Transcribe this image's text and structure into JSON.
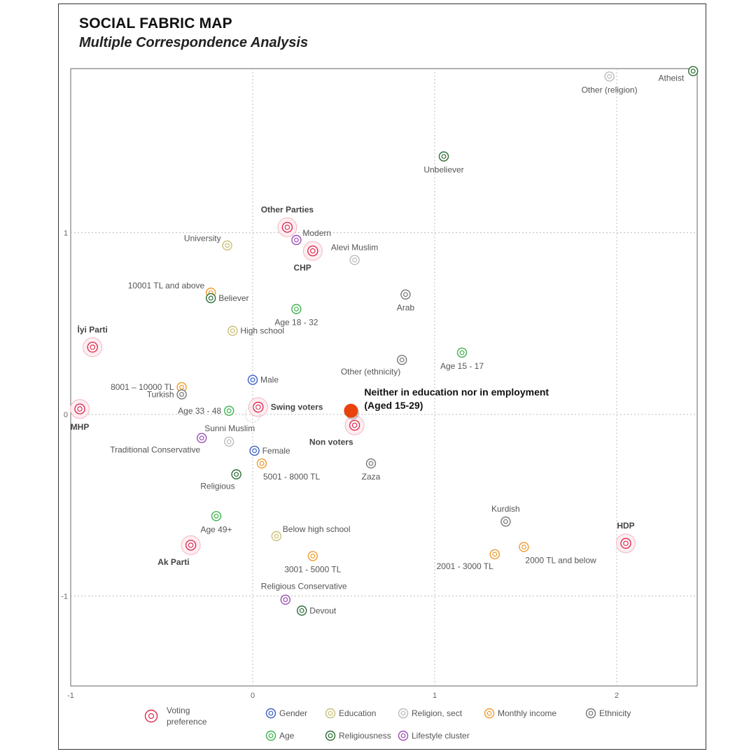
{
  "header": {
    "title": "SOCIAL FABRIC MAP",
    "subtitle": "Multiple Correspondence Analysis"
  },
  "chart_data": {
    "type": "scatter",
    "title": "SOCIAL FABRIC MAP",
    "subtitle": "Multiple Correspondence Analysis",
    "xlabel": "",
    "ylabel": "",
    "xlim": [
      -1,
      2.45
    ],
    "ylim": [
      -1.6,
      1.9
    ],
    "grid": true,
    "x_ticks": [
      {
        "value": -1,
        "label": "-1"
      },
      {
        "value": 0,
        "label": "0"
      },
      {
        "value": 1,
        "label": "1"
      },
      {
        "value": 2,
        "label": "2"
      }
    ],
    "y_ticks": [
      {
        "value": 1,
        "label": "1"
      },
      {
        "value": 0,
        "label": "0"
      },
      {
        "value": -1,
        "label": "-1"
      }
    ],
    "groups": [
      {
        "id": "voting",
        "name": "Voting preference",
        "color": "#e0294f"
      },
      {
        "id": "gender",
        "name": "Gender",
        "color": "#3d5fc4"
      },
      {
        "id": "education",
        "name": "Education",
        "color": "#c9c07a"
      },
      {
        "id": "religion",
        "name": "Religion, sect",
        "color": "#bbbbbb"
      },
      {
        "id": "income",
        "name": "Monthly income",
        "color": "#ef9a2e"
      },
      {
        "id": "ethnicity",
        "name": "Ethnicity",
        "color": "#777777"
      },
      {
        "id": "age",
        "name": "Age",
        "color": "#3fb24f"
      },
      {
        "id": "religiousness",
        "name": "Religiousness",
        "color": "#2e6b35"
      },
      {
        "id": "lifestyle",
        "name": "Lifestyle cluster",
        "color": "#9b4fb5"
      }
    ],
    "points": [
      {
        "label": "Atheist",
        "group": "religiousness",
        "x": 2.42,
        "y": 1.89,
        "lpos": "left-below"
      },
      {
        "label": "Other (religion)",
        "group": "religion",
        "x": 1.96,
        "y": 1.86,
        "lpos": "below"
      },
      {
        "label": "Unbeliever",
        "group": "religiousness",
        "x": 1.05,
        "y": 1.42,
        "lpos": "below"
      },
      {
        "label": "Other Parties",
        "group": "voting",
        "x": 0.19,
        "y": 1.03,
        "lpos": "above"
      },
      {
        "label": "Modern",
        "group": "lifestyle",
        "x": 0.24,
        "y": 0.96,
        "lpos": "right-above"
      },
      {
        "label": "CHP",
        "group": "voting",
        "x": 0.33,
        "y": 0.9,
        "lpos": "below-left"
      },
      {
        "label": "University",
        "group": "education",
        "x": -0.14,
        "y": 0.93,
        "lpos": "left-above"
      },
      {
        "label": "Alevi Muslim",
        "group": "religion",
        "x": 0.56,
        "y": 0.85,
        "lpos": "above"
      },
      {
        "label": "10001 TL and above",
        "group": "income",
        "x": -0.23,
        "y": 0.67,
        "lpos": "left-above"
      },
      {
        "label": "Believer",
        "group": "religiousness",
        "x": -0.23,
        "y": 0.64,
        "lpos": "right"
      },
      {
        "label": "Arab",
        "group": "ethnicity",
        "x": 0.84,
        "y": 0.66,
        "lpos": "below"
      },
      {
        "label": "Age 18 - 32",
        "group": "age",
        "x": 0.24,
        "y": 0.58,
        "lpos": "below"
      },
      {
        "label": "High school",
        "group": "education",
        "x": -0.11,
        "y": 0.46,
        "lpos": "right"
      },
      {
        "label": "İyi Parti",
        "group": "voting",
        "x": -0.88,
        "y": 0.37,
        "lpos": "above"
      },
      {
        "label": "Age 15 - 17",
        "group": "age",
        "x": 1.15,
        "y": 0.34,
        "lpos": "below"
      },
      {
        "label": "Other (ethnicity)",
        "group": "ethnicity",
        "x": 0.82,
        "y": 0.3,
        "lpos": "below-left"
      },
      {
        "label": "Male",
        "group": "gender",
        "x": 0.0,
        "y": 0.19,
        "lpos": "right"
      },
      {
        "label": "8001 – 10000 TL",
        "group": "income",
        "x": -0.39,
        "y": 0.15,
        "lpos": "left"
      },
      {
        "label": "Turkish",
        "group": "ethnicity",
        "x": -0.39,
        "y": 0.11,
        "lpos": "left"
      },
      {
        "label": "Swing voters",
        "group": "voting",
        "x": 0.03,
        "y": 0.04,
        "lpos": "right"
      },
      {
        "label": "MHP",
        "group": "voting",
        "x": -0.95,
        "y": 0.03,
        "lpos": "below"
      },
      {
        "label": "Age 33 - 48",
        "group": "age",
        "x": -0.13,
        "y": 0.02,
        "lpos": "left"
      },
      {
        "label": "Non voters",
        "group": "voting",
        "x": 0.56,
        "y": -0.06,
        "lpos": "below-left"
      },
      {
        "label": "Sunni Muslim",
        "group": "religion",
        "x": -0.13,
        "y": -0.15,
        "lpos": "above-right"
      },
      {
        "label": "Traditional Conservative",
        "group": "lifestyle",
        "x": -0.28,
        "y": -0.13,
        "lpos": "below-left"
      },
      {
        "label": "Female",
        "group": "gender",
        "x": 0.01,
        "y": -0.2,
        "lpos": "right"
      },
      {
        "label": "5001 - 8000 TL",
        "group": "income",
        "x": 0.05,
        "y": -0.27,
        "lpos": "below-right"
      },
      {
        "label": "Zaza",
        "group": "ethnicity",
        "x": 0.65,
        "y": -0.27,
        "lpos": "below"
      },
      {
        "label": "Religious",
        "group": "religiousness",
        "x": -0.09,
        "y": -0.33,
        "lpos": "below-left"
      },
      {
        "label": "Age 49+",
        "group": "age",
        "x": -0.2,
        "y": -0.56,
        "lpos": "below"
      },
      {
        "label": "Kurdish",
        "group": "ethnicity",
        "x": 1.39,
        "y": -0.59,
        "lpos": "above"
      },
      {
        "label": "Below high school",
        "group": "education",
        "x": 0.13,
        "y": -0.67,
        "lpos": "right-above"
      },
      {
        "label": "HDP",
        "group": "voting",
        "x": 2.05,
        "y": -0.71,
        "lpos": "above"
      },
      {
        "label": "Ak Parti",
        "group": "voting",
        "x": -0.34,
        "y": -0.72,
        "lpos": "below-left"
      },
      {
        "label": "2000 TL and below",
        "group": "income",
        "x": 1.49,
        "y": -0.73,
        "lpos": "below-right"
      },
      {
        "label": "2001 - 3000 TL",
        "group": "income",
        "x": 1.33,
        "y": -0.77,
        "lpos": "below-left"
      },
      {
        "label": "3001 - 5000 TL",
        "group": "income",
        "x": 0.33,
        "y": -0.78,
        "lpos": "below"
      },
      {
        "label": "Religious Conservative",
        "group": "lifestyle",
        "x": 0.18,
        "y": -1.02,
        "lpos": "above-right"
      },
      {
        "label": "Devout",
        "group": "religiousness",
        "x": 0.27,
        "y": -1.08,
        "lpos": "right"
      }
    ],
    "highlight": {
      "label_line1": "Neither in education nor in employment",
      "label_line2": "(Aged 15-29)",
      "x": 0.54,
      "y": 0.02,
      "color": "#e8430f"
    },
    "legend": [
      {
        "group": "voting",
        "label_line1": "Voting",
        "label_line2": "preference"
      },
      {
        "group": "gender",
        "label_line1": "Gender"
      },
      {
        "group": "education",
        "label_line1": "Education"
      },
      {
        "group": "religion",
        "label_line1": "Religion, sect"
      },
      {
        "group": "income",
        "label_line1": "Monthly income"
      },
      {
        "group": "ethnicity",
        "label_line1": "Ethnicity"
      },
      {
        "group": "age",
        "label_line1": "Age"
      },
      {
        "group": "religiousness",
        "label_line1": "Religiousness"
      },
      {
        "group": "lifestyle",
        "label_line1": "Lifestyle cluster"
      }
    ]
  }
}
